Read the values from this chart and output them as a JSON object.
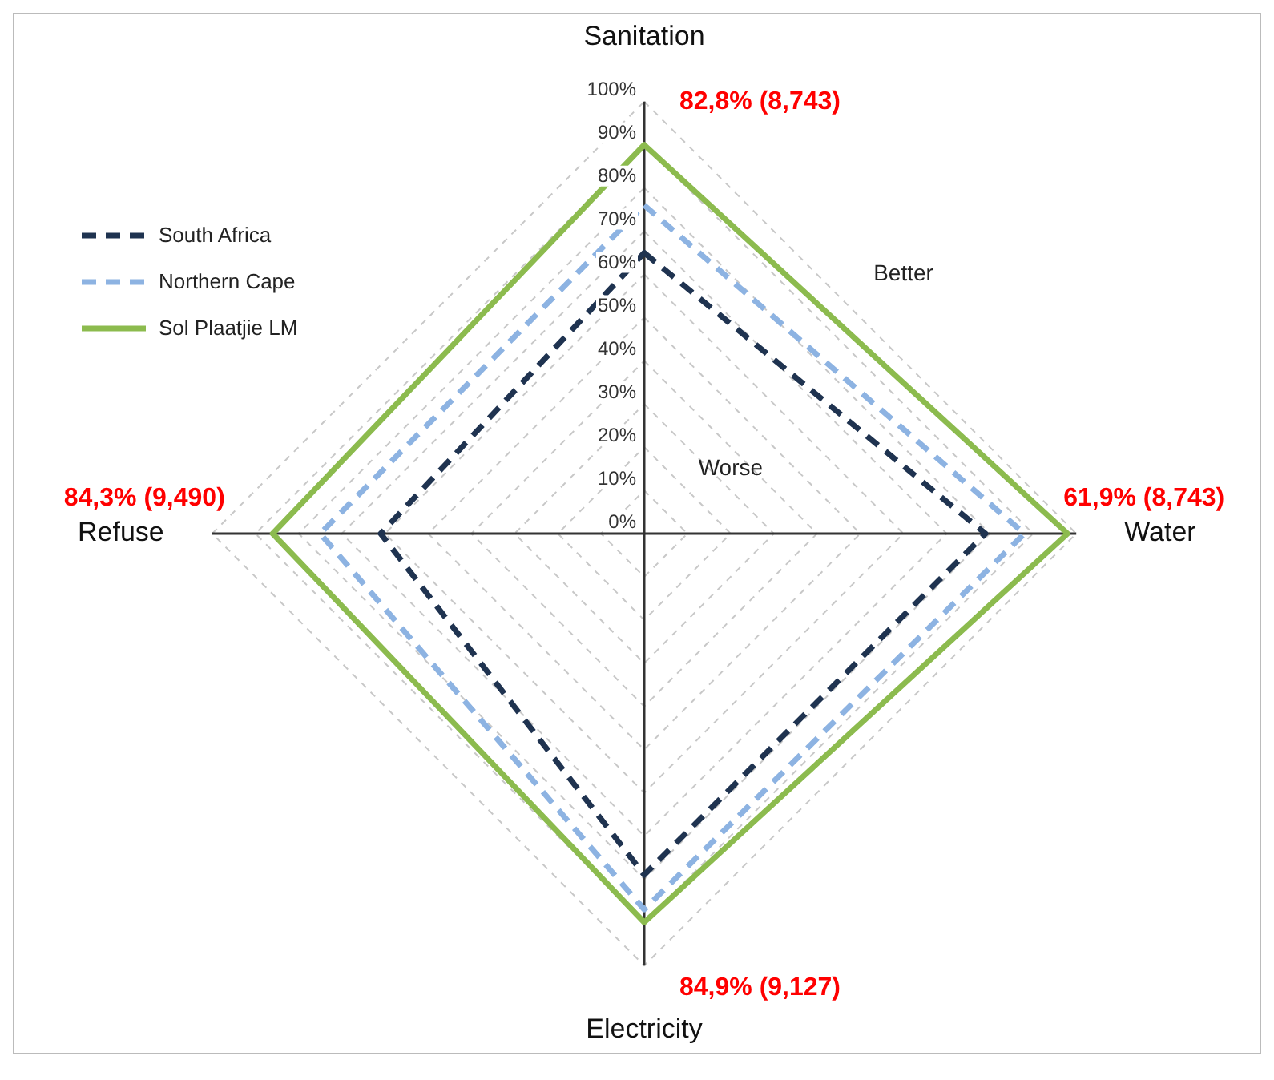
{
  "chart_data": {
    "type": "radar",
    "categories": [
      "Sanitation",
      "Water",
      "Electricity",
      "Refuse"
    ],
    "series": [
      {
        "name": "South Africa",
        "color": "#1f3350",
        "line_style": "dashed",
        "values": [
          65,
          79,
          79,
          61
        ]
      },
      {
        "name": "Northern Cape",
        "color": "#8db3e2",
        "line_style": "dashed",
        "values": [
          76,
          88,
          87,
          75
        ]
      },
      {
        "name": "Sol Plaatjie LM",
        "color": "#8cbb4e",
        "line_style": "solid",
        "values": [
          90,
          98,
          90,
          86
        ]
      }
    ],
    "ylim": [
      0,
      100
    ],
    "yticks": [
      {
        "value": 0,
        "label": "0%"
      },
      {
        "value": 10,
        "label": "10%"
      },
      {
        "value": 20,
        "label": "20%"
      },
      {
        "value": 30,
        "label": "30%"
      },
      {
        "value": 40,
        "label": "40%"
      },
      {
        "value": 50,
        "label": "50%"
      },
      {
        "value": 60,
        "label": "60%"
      },
      {
        "value": 70,
        "label": "70%"
      },
      {
        "value": 80,
        "label": "80%"
      },
      {
        "value": 90,
        "label": "90%"
      },
      {
        "value": 100,
        "label": "100%"
      }
    ],
    "annotations": [
      "82,8% (8,743)",
      "61,9% (8,743)",
      "84,9% (9,127)",
      "84,3% (9,490)",
      "Better",
      "Worse"
    ],
    "grid": true,
    "legend": "top left",
    "marker": "none"
  }
}
